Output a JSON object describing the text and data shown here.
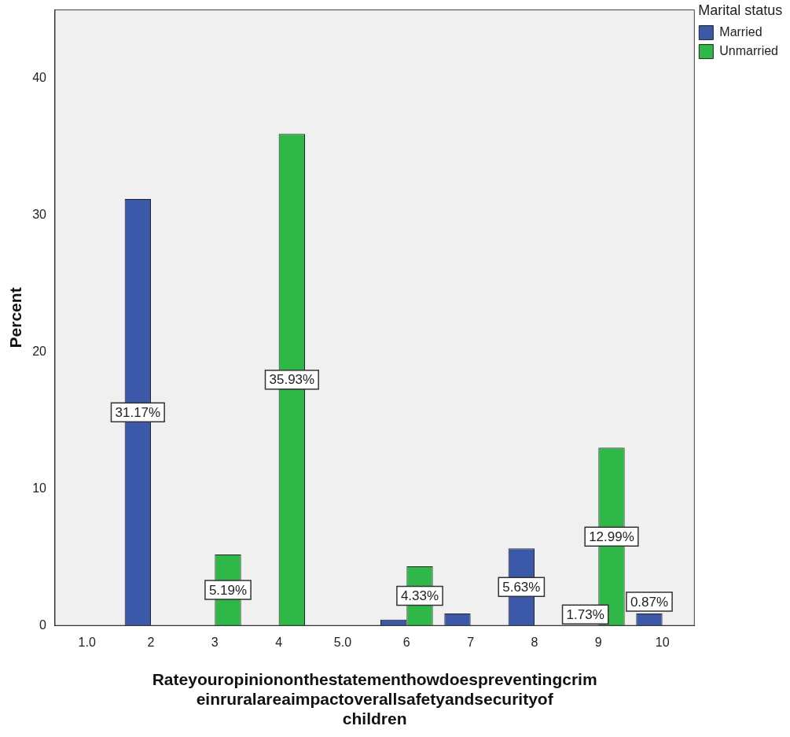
{
  "chart_data": {
    "type": "bar",
    "xlabel": "Rateyouropiniononthestatementhowdoespreventingcrimeinruralareaimpactoverallsafetyandsecurityof children",
    "ylabel": "Percent",
    "legend_title": "Marital status",
    "legend": "right",
    "categories": [
      "1.0",
      "2",
      "3",
      "4",
      "5.0",
      "6",
      "7",
      "8",
      "9",
      "10"
    ],
    "series": [
      {
        "name": "Married",
        "color": "#3c58a8",
        "values": [
          null,
          31.17,
          null,
          null,
          null,
          0.43,
          0.87,
          5.63,
          null,
          0.87
        ],
        "value_labels": [
          null,
          "31.17%",
          null,
          null,
          null,
          null,
          null,
          "5.63%",
          null,
          "0.87%"
        ]
      },
      {
        "name": "Unmarried",
        "color": "#2fb847",
        "values": [
          null,
          null,
          5.19,
          35.93,
          null,
          4.33,
          null,
          null,
          12.99,
          null
        ],
        "value_labels": [
          null,
          null,
          "5.19%",
          "35.93%",
          null,
          "4.33%",
          null,
          null,
          "12.99%",
          null
        ]
      }
    ],
    "annotations": [
      {
        "text": "1.73%",
        "x": "9",
        "y": 0
      }
    ],
    "ylim": [
      0,
      45
    ],
    "yticks": [
      0,
      10,
      20,
      30,
      40
    ],
    "grid": false
  }
}
